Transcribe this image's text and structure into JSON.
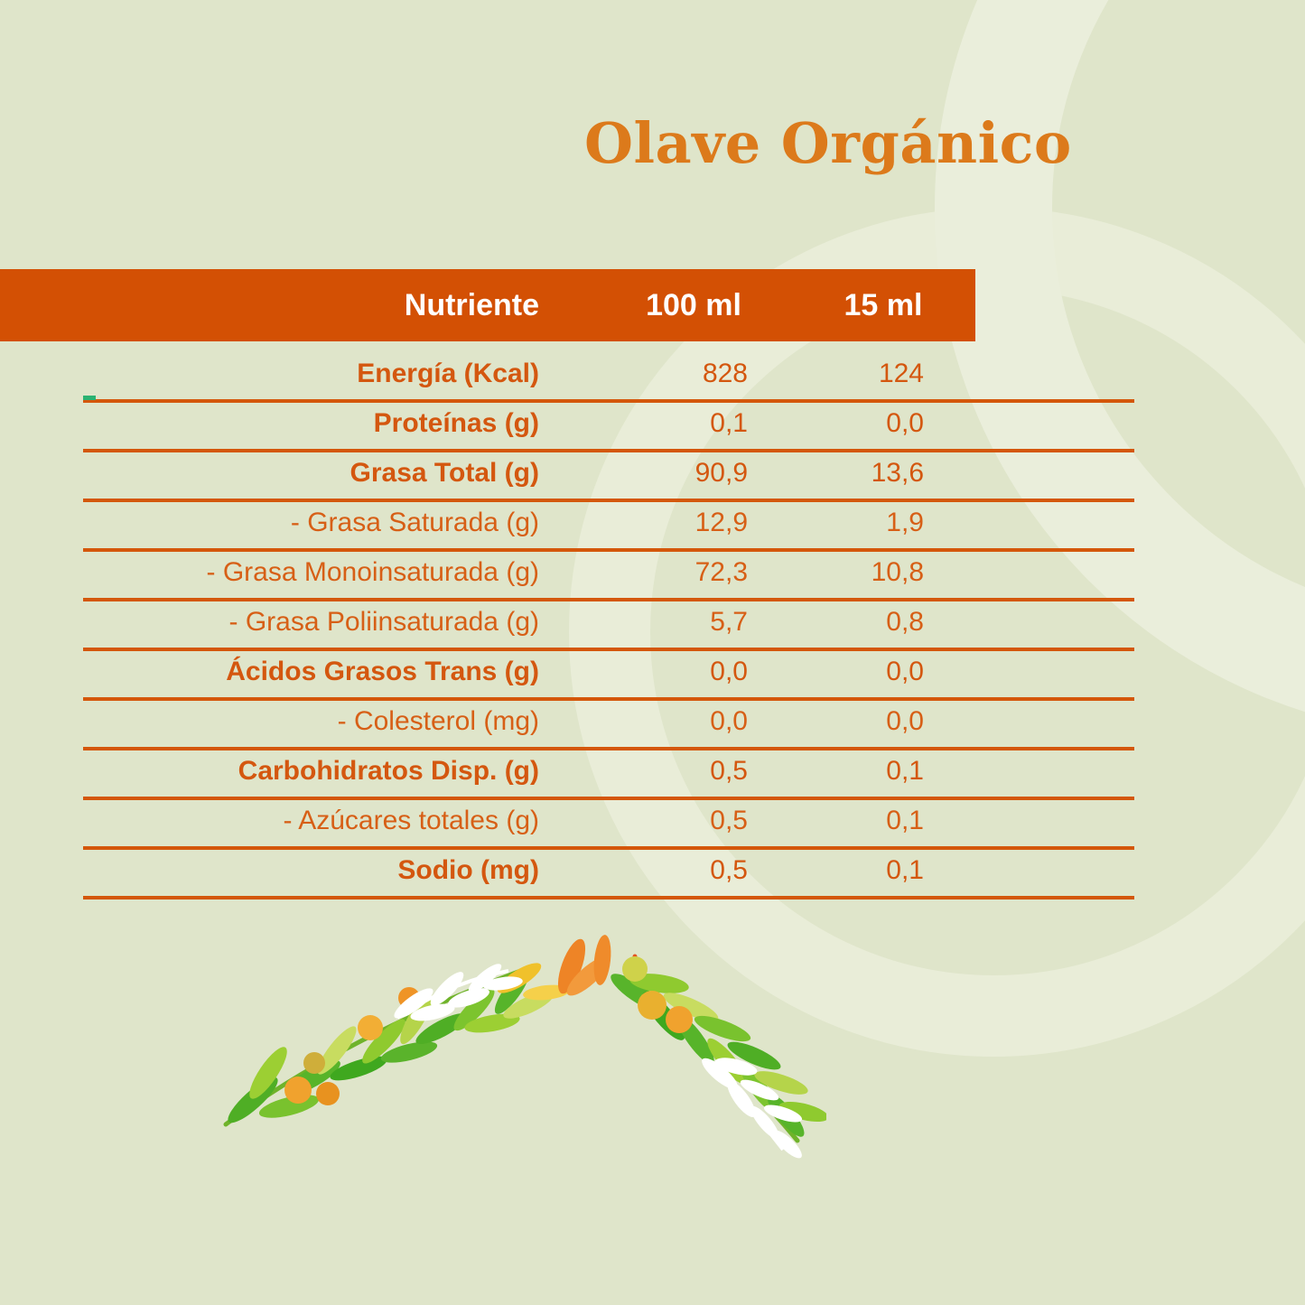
{
  "page": {
    "title": "Olave Orgánico"
  },
  "colors": {
    "background": "#dfe5ca",
    "header_bar": "#d35004",
    "header_text": "#ffffff",
    "table_orange": "#d4570b",
    "title_orange": "#dc7a1b",
    "green_accent": "#2bb271"
  },
  "table": {
    "columns": [
      "Nutriente",
      "100 ml",
      "15 ml"
    ],
    "rows": [
      {
        "label": "Energía (Kcal)",
        "v100": "828",
        "v15": "124",
        "sub": false
      },
      {
        "label": "Proteínas (g)",
        "v100": "0,1",
        "v15": "0,0",
        "sub": false
      },
      {
        "label": "Grasa Total (g)",
        "v100": "90,9",
        "v15": "13,6",
        "sub": false
      },
      {
        "label": "- Grasa Saturada (g)",
        "v100": "12,9",
        "v15": "1,9",
        "sub": true
      },
      {
        "label": "- Grasa Monoinsaturada (g)",
        "v100": "72,3",
        "v15": "10,8",
        "sub": true
      },
      {
        "label": "- Grasa Poliinsaturada (g)",
        "v100": "5,7",
        "v15": "0,8",
        "sub": true
      },
      {
        "label": "Ácidos Grasos Trans (g)",
        "v100": "0,0",
        "v15": "0,0",
        "sub": false
      },
      {
        "label": "- Colesterol (mg)",
        "v100": "0,0",
        "v15": "0,0",
        "sub": true
      },
      {
        "label": "Carbohidratos Disp. (g)",
        "v100": "0,5",
        "v15": "0,1",
        "sub": false
      },
      {
        "label": "- Azúcares totales (g)",
        "v100": "0,5",
        "v15": "0,1",
        "sub": true
      },
      {
        "label": "Sodio (mg)",
        "v100": "0,5",
        "v15": "0,1",
        "sub": false
      }
    ]
  },
  "decoration": {
    "watermark": "large-ring-watermark",
    "illustration": "watercolor-olive-branch-wreath"
  },
  "layout_constants": {
    "row_top_start": 387,
    "row_pitch": 55
  }
}
